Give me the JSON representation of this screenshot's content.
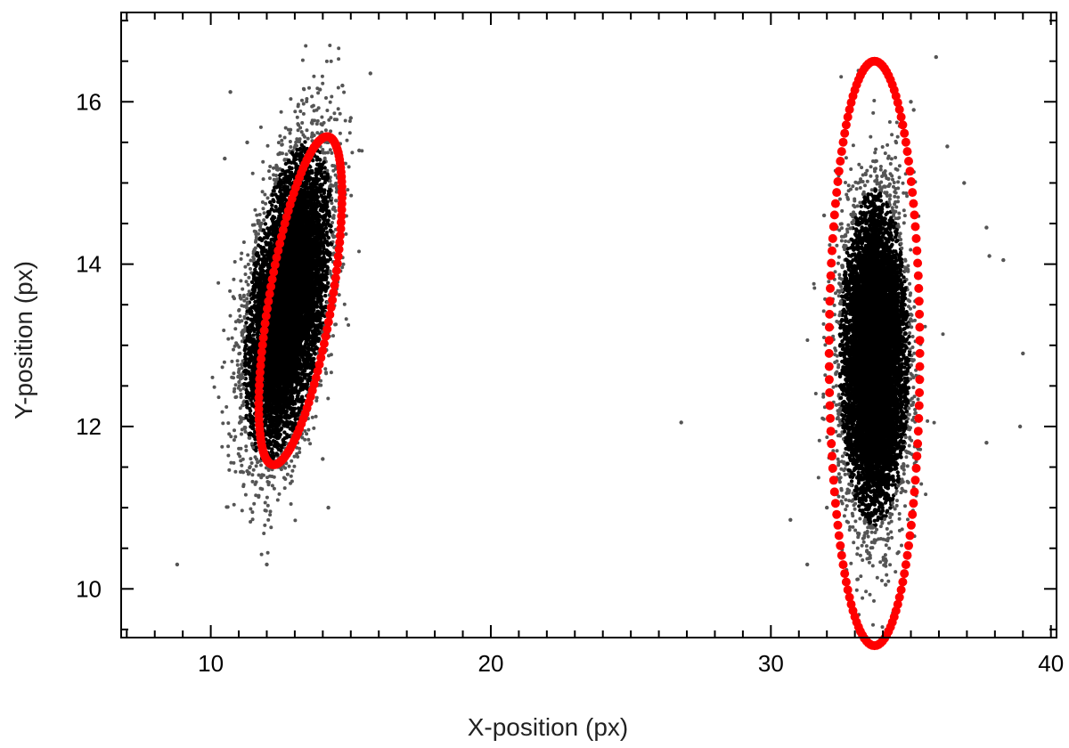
{
  "chart_data": {
    "type": "scatter",
    "title": "",
    "xlabel": "X-position (px)",
    "ylabel": "Y-position (px)",
    "xlim": [
      6.8,
      40.2
    ],
    "ylim": [
      9.4,
      17.1
    ],
    "x_ticks": [
      10,
      20,
      30,
      40
    ],
    "y_ticks": [
      10,
      12,
      14,
      16
    ],
    "x_minor_step": 1,
    "y_minor_step": 0.5,
    "grid": false,
    "legend": "none",
    "colors": {
      "core_points": "#000000",
      "outlier_points": "#555555",
      "ellipse": "#ff0000",
      "axes": "#000000"
    },
    "clusters": [
      {
        "center": [
          12.75,
          13.55
        ],
        "spread": [
          0.95,
          0.55
        ],
        "rotation_deg": 58,
        "approx_points": 9000,
        "ellipse": {
          "center": [
            13.2,
            13.55
          ],
          "semi_major": 2.3,
          "semi_minor": 1.0,
          "rotation_deg": 58
        }
      },
      {
        "center": [
          33.7,
          12.85
        ],
        "spread": [
          0.9,
          0.55
        ],
        "rotation_deg": 90,
        "approx_points": 9000,
        "ellipse": {
          "center": [
            33.7,
            12.9
          ],
          "semi_major": 1.62,
          "semi_minor": 3.6,
          "rotation_deg": 0
        }
      }
    ],
    "outliers": [
      [
        8.8,
        10.3
      ],
      [
        12.0,
        10.3
      ],
      [
        10.7,
        16.12
      ],
      [
        14.7,
        16.2
      ],
      [
        15.7,
        16.35
      ],
      [
        15.0,
        15.8
      ],
      [
        14.2,
        11.0
      ],
      [
        14.0,
        11.6
      ],
      [
        12.4,
        11.5
      ],
      [
        11.3,
        11.45
      ],
      [
        10.5,
        15.3
      ],
      [
        11.3,
        15.5
      ],
      [
        15.3,
        15.4
      ],
      [
        13.5,
        12.2
      ],
      [
        13.9,
        16.15
      ],
      [
        26.8,
        12.05
      ],
      [
        31.3,
        10.3
      ],
      [
        30.7,
        10.85
      ],
      [
        34.1,
        10.05
      ],
      [
        35.0,
        16.0
      ],
      [
        35.1,
        15.9
      ],
      [
        35.9,
        16.55
      ],
      [
        36.3,
        15.45
      ],
      [
        34.6,
        15.7
      ],
      [
        37.8,
        14.1
      ],
      [
        38.3,
        14.05
      ],
      [
        38.9,
        12.0
      ],
      [
        39.0,
        12.9
      ],
      [
        37.7,
        11.8
      ],
      [
        34.2,
        15.05
      ],
      [
        36.9,
        15.0
      ],
      [
        37.7,
        14.45
      ],
      [
        31.9,
        14.6
      ],
      [
        32.0,
        11.0
      ]
    ]
  }
}
